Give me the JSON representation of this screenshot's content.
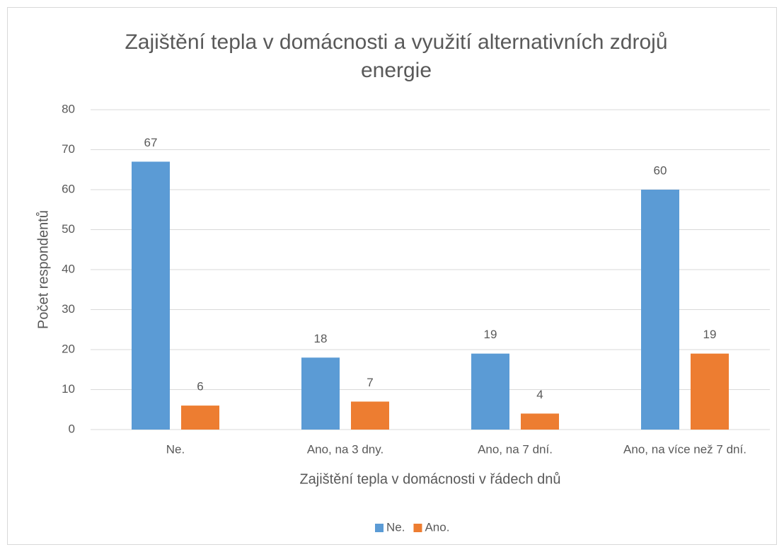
{
  "chart_data": {
    "type": "bar",
    "title": "Zajištění tepla v domácnosti a využití alternativních zdrojů energie",
    "x_label": "Zajištění tepla v domácnosti v řádech dnů",
    "y_label": "Počet respondentů",
    "categories": [
      "Ne.",
      "Ano, na 3 dny.",
      "Ano, na 7 dní.",
      "Ano, na více než 7 dní."
    ],
    "series": [
      {
        "name": "Ne.",
        "color": "#5b9bd5",
        "values": [
          67,
          18,
          19,
          60
        ]
      },
      {
        "name": "Ano.",
        "color": "#ed7d31",
        "values": [
          6,
          7,
          4,
          19
        ]
      }
    ],
    "ylim": [
      0,
      80
    ],
    "yticks": [
      0,
      10,
      20,
      30,
      40,
      50,
      60,
      70,
      80
    ],
    "grid": true,
    "legend": "bottom"
  }
}
